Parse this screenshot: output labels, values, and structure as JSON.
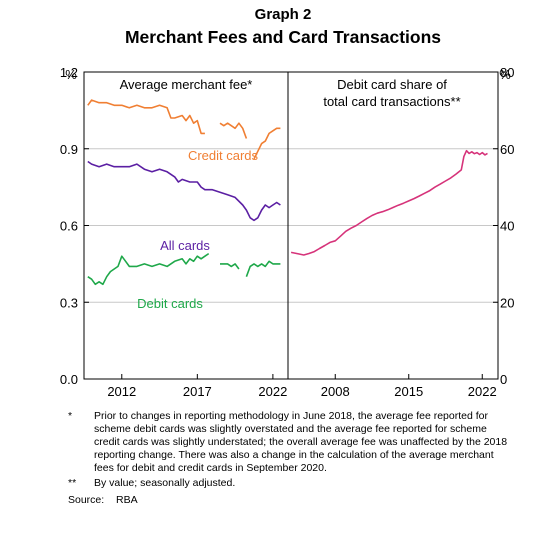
{
  "graph_label": "Graph 2",
  "title": "Merchant Fees and Card Transactions",
  "notes": [
    {
      "mark": "*",
      "text": "Prior to changes in reporting methodology in June 2018, the average fee reported for scheme debit cards was slightly overstated and the average fee reported for scheme credit cards was slightly understated; the overall average fee was unaffected by the 2018 reporting change. There was also a change in the calculation of the average merchant fees for debit and credit cards in September 2020."
    },
    {
      "mark": "**",
      "text": "By value; seasonally adjusted."
    }
  ],
  "source": {
    "label": "Source:",
    "value": "RBA"
  },
  "colors": {
    "credit": "#F07F33",
    "all": "#5B1FA3",
    "debit": "#1FA84A",
    "debit_share": "#D6337A",
    "grid": "#c8c8c8"
  },
  "chart_data": [
    {
      "type": "line",
      "panel_title": "Average merchant fee*",
      "y_unit_label": "%",
      "ylim": [
        0,
        1.2
      ],
      "yticks": [
        0.0,
        0.3,
        0.6,
        0.9,
        1.2
      ],
      "ytick_labels": [
        "0.0",
        "0.3",
        "0.6",
        "0.9",
        "1.2"
      ],
      "xlim": [
        2009.5,
        2023.0
      ],
      "xticks": [
        2012,
        2017,
        2022
      ],
      "xtick_labels": [
        "2012",
        "2017",
        "2022"
      ],
      "grid": true,
      "series": [
        {
          "name": "Credit cards",
          "color_key": "credit",
          "segments": [
            [
              [
                2009.75,
                1.07
              ],
              [
                2010.0,
                1.09
              ],
              [
                2010.5,
                1.08
              ],
              [
                2011.0,
                1.08
              ],
              [
                2011.5,
                1.07
              ],
              [
                2012.0,
                1.07
              ],
              [
                2012.5,
                1.06
              ],
              [
                2013.0,
                1.07
              ],
              [
                2013.5,
                1.06
              ],
              [
                2014.0,
                1.06
              ],
              [
                2014.5,
                1.07
              ],
              [
                2015.0,
                1.06
              ],
              [
                2015.25,
                1.02
              ],
              [
                2015.5,
                1.02
              ],
              [
                2016.0,
                1.03
              ],
              [
                2016.25,
                1.01
              ],
              [
                2016.5,
                1.03
              ],
              [
                2016.75,
                1.0
              ],
              [
                2017.0,
                1.01
              ],
              [
                2017.25,
                0.96
              ],
              [
                2017.5,
                0.96
              ]
            ],
            [
              [
                2018.5,
                1.0
              ],
              [
                2018.75,
                0.99
              ],
              [
                2019.0,
                1.0
              ],
              [
                2019.25,
                0.99
              ],
              [
                2019.5,
                0.98
              ],
              [
                2019.75,
                1.0
              ],
              [
                2020.0,
                0.98
              ],
              [
                2020.25,
                0.94
              ]
            ],
            [
              [
                2020.75,
                0.86
              ],
              [
                2021.0,
                0.89
              ],
              [
                2021.25,
                0.92
              ],
              [
                2021.5,
                0.93
              ],
              [
                2021.75,
                0.96
              ],
              [
                2022.0,
                0.97
              ],
              [
                2022.25,
                0.98
              ],
              [
                2022.5,
                0.98
              ]
            ]
          ]
        },
        {
          "name": "All cards",
          "color_key": "all",
          "segments": [
            [
              [
                2009.75,
                0.85
              ],
              [
                2010.0,
                0.84
              ],
              [
                2010.5,
                0.83
              ],
              [
                2011.0,
                0.84
              ],
              [
                2011.5,
                0.83
              ],
              [
                2012.0,
                0.83
              ],
              [
                2012.5,
                0.83
              ],
              [
                2013.0,
                0.84
              ],
              [
                2013.5,
                0.82
              ],
              [
                2014.0,
                0.81
              ],
              [
                2014.5,
                0.82
              ],
              [
                2015.0,
                0.81
              ],
              [
                2015.5,
                0.79
              ],
              [
                2015.75,
                0.77
              ],
              [
                2016.0,
                0.78
              ],
              [
                2016.5,
                0.77
              ],
              [
                2017.0,
                0.77
              ],
              [
                2017.25,
                0.75
              ],
              [
                2017.5,
                0.74
              ],
              [
                2018.0,
                0.74
              ],
              [
                2018.5,
                0.73
              ],
              [
                2019.0,
                0.72
              ],
              [
                2019.5,
                0.71
              ],
              [
                2020.0,
                0.68
              ],
              [
                2020.25,
                0.66
              ],
              [
                2020.5,
                0.63
              ],
              [
                2020.75,
                0.62
              ],
              [
                2021.0,
                0.63
              ],
              [
                2021.25,
                0.66
              ],
              [
                2021.5,
                0.68
              ],
              [
                2021.75,
                0.67
              ],
              [
                2022.0,
                0.68
              ],
              [
                2022.25,
                0.69
              ],
              [
                2022.5,
                0.68
              ]
            ]
          ]
        },
        {
          "name": "Debit cards",
          "color_key": "debit",
          "segments": [
            [
              [
                2009.75,
                0.4
              ],
              [
                2010.0,
                0.39
              ],
              [
                2010.25,
                0.37
              ],
              [
                2010.5,
                0.38
              ],
              [
                2010.75,
                0.37
              ],
              [
                2011.0,
                0.4
              ],
              [
                2011.25,
                0.42
              ],
              [
                2011.5,
                0.43
              ],
              [
                2011.75,
                0.44
              ],
              [
                2012.0,
                0.48
              ],
              [
                2012.25,
                0.46
              ],
              [
                2012.5,
                0.44
              ],
              [
                2013.0,
                0.44
              ],
              [
                2013.5,
                0.45
              ],
              [
                2014.0,
                0.44
              ],
              [
                2014.5,
                0.45
              ],
              [
                2015.0,
                0.44
              ],
              [
                2015.5,
                0.46
              ],
              [
                2016.0,
                0.47
              ],
              [
                2016.25,
                0.45
              ],
              [
                2016.5,
                0.47
              ],
              [
                2016.75,
                0.46
              ],
              [
                2017.0,
                0.48
              ],
              [
                2017.25,
                0.47
              ],
              [
                2017.5,
                0.48
              ],
              [
                2017.75,
                0.49
              ]
            ],
            [
              [
                2018.5,
                0.45
              ],
              [
                2018.75,
                0.45
              ],
              [
                2019.0,
                0.45
              ],
              [
                2019.25,
                0.44
              ],
              [
                2019.5,
                0.45
              ],
              [
                2019.75,
                0.43
              ]
            ],
            [
              [
                2020.25,
                0.4
              ],
              [
                2020.5,
                0.44
              ],
              [
                2020.75,
                0.45
              ],
              [
                2021.0,
                0.44
              ],
              [
                2021.25,
                0.45
              ],
              [
                2021.5,
                0.44
              ],
              [
                2021.75,
                0.46
              ],
              [
                2022.0,
                0.45
              ],
              [
                2022.25,
                0.45
              ],
              [
                2022.5,
                0.45
              ]
            ]
          ]
        }
      ]
    },
    {
      "type": "line",
      "panel_title": "Debit card share of total card transactions**",
      "panel_title_lines": [
        "Debit card share of",
        "total card transactions**"
      ],
      "y_unit_label": "%",
      "ylim": [
        0,
        80
      ],
      "yticks": [
        0,
        20,
        40,
        60,
        80
      ],
      "ytick_labels": [
        "0",
        "20",
        "40",
        "60",
        "80"
      ],
      "xlim": [
        2003.5,
        2023.5
      ],
      "xticks": [
        2008,
        2015,
        2022
      ],
      "xtick_labels": [
        "2008",
        "2015",
        "2022"
      ],
      "grid": true,
      "series": [
        {
          "name": "",
          "color_key": "debit_share",
          "segments": [
            [
              [
                2003.8,
                33.0
              ],
              [
                2004.5,
                32.6
              ],
              [
                2005.0,
                32.3
              ],
              [
                2005.5,
                32.7
              ],
              [
                2006.0,
                33.2
              ],
              [
                2006.5,
                34.0
              ],
              [
                2007.0,
                34.8
              ],
              [
                2007.5,
                35.6
              ],
              [
                2008.0,
                36.0
              ],
              [
                2008.5,
                37.2
              ],
              [
                2009.0,
                38.5
              ],
              [
                2009.5,
                39.3
              ],
              [
                2010.0,
                40.0
              ],
              [
                2010.5,
                40.9
              ],
              [
                2011.0,
                41.8
              ],
              [
                2011.5,
                42.6
              ],
              [
                2012.0,
                43.2
              ],
              [
                2012.5,
                43.6
              ],
              [
                2013.0,
                44.1
              ],
              [
                2013.5,
                44.7
              ],
              [
                2014.0,
                45.3
              ],
              [
                2014.5,
                45.8
              ],
              [
                2015.0,
                46.4
              ],
              [
                2015.5,
                47.0
              ],
              [
                2016.0,
                47.7
              ],
              [
                2016.5,
                48.4
              ],
              [
                2017.0,
                49.1
              ],
              [
                2017.5,
                50.0
              ],
              [
                2018.0,
                50.8
              ],
              [
                2018.5,
                51.6
              ],
              [
                2019.0,
                52.4
              ],
              [
                2019.5,
                53.4
              ],
              [
                2020.0,
                54.5
              ],
              [
                2020.25,
                58.0
              ],
              [
                2020.5,
                59.5
              ],
              [
                2020.75,
                58.8
              ],
              [
                2021.0,
                59.2
              ],
              [
                2021.25,
                58.7
              ],
              [
                2021.5,
                59.0
              ],
              [
                2021.75,
                58.5
              ],
              [
                2022.0,
                59.0
              ],
              [
                2022.25,
                58.4
              ],
              [
                2022.5,
                58.8
              ]
            ]
          ]
        }
      ]
    }
  ],
  "annotations": [
    {
      "text": "Credit cards",
      "color_key": "credit"
    },
    {
      "text": "All cards",
      "color_key": "all"
    },
    {
      "text": "Debit cards",
      "color_key": "debit"
    }
  ]
}
